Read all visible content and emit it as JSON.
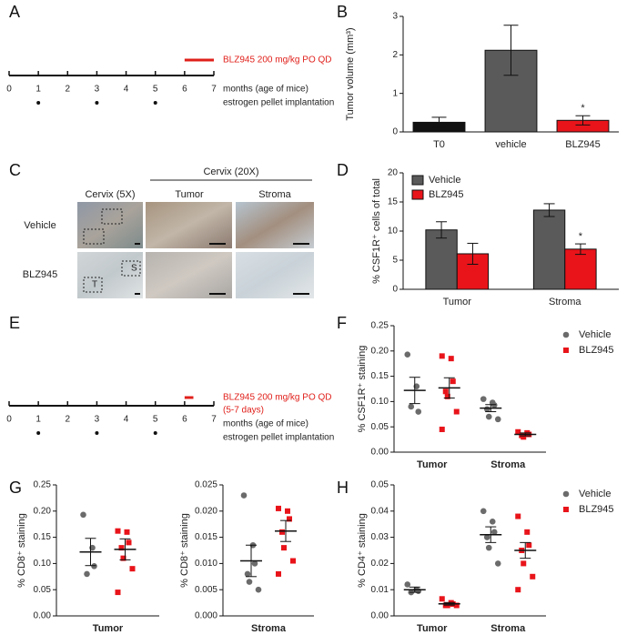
{
  "panels": [
    "A",
    "B",
    "C",
    "D",
    "E",
    "F",
    "G",
    "H"
  ],
  "timelines": [
    {
      "ticks": [
        0,
        1,
        2,
        3,
        4,
        5,
        6,
        7
      ],
      "pellets": [
        1,
        3,
        5
      ],
      "treatment": [
        6,
        7
      ],
      "treatment_label": "BLZ945 200 mg/kg PO QD",
      "axis_label": "months (age of mice)",
      "pellet_label": "estrogen pellet implantation"
    },
    {
      "ticks": [
        0,
        1,
        2,
        3,
        4,
        5,
        6,
        7
      ],
      "pellets": [
        1,
        3,
        5
      ],
      "treatment": [
        6.0,
        6.3
      ],
      "treatment_label": "BLZ945 200 mg/kg PO QD",
      "treatment_note": "(5-7 days)",
      "axis_label": "months (age of mice)",
      "pellet_label": "estrogen pellet implantation"
    }
  ],
  "micrographs": {
    "header_low": "Cervix (5X)",
    "header_high": "Cervix (20X)",
    "columns": [
      "Tumor",
      "Stroma"
    ],
    "rows": [
      "Vehicle",
      "BLZ945"
    ],
    "insets": [
      "S",
      "T"
    ]
  },
  "chart_data": [
    {
      "type": "bar",
      "ylabel": "Tumor volume (mm³)",
      "categories": [
        "T0",
        "vehicle",
        "BLZ945"
      ],
      "values": [
        0.25,
        2.12,
        0.3
      ],
      "errors": [
        0.13,
        0.65,
        0.12
      ],
      "colors": [
        "#111111",
        "#5a5a5a",
        "#e8141a"
      ],
      "ylim": [
        0,
        3
      ],
      "yticks": [
        0,
        1,
        2,
        3
      ],
      "annotations": [
        {
          "label": "*",
          "category": "BLZ945"
        }
      ]
    },
    {
      "type": "grouped-bar",
      "ylabel": "% CSF1R⁺ cells of total",
      "categories": [
        "Tumor",
        "Stroma"
      ],
      "series": [
        {
          "name": "Vehicle",
          "color": "#5a5a5a",
          "values": [
            10.2,
            13.6
          ],
          "errors": [
            1.4,
            1.1
          ]
        },
        {
          "name": "BLZ945",
          "color": "#e8141a",
          "values": [
            6.1,
            6.9
          ],
          "errors": [
            1.8,
            0.9
          ]
        }
      ],
      "ylim": [
        0,
        20
      ],
      "yticks": [
        0,
        5,
        10,
        15,
        20
      ],
      "legend": "upper left",
      "annotations": [
        {
          "label": "*",
          "category": "Stroma",
          "series": "BLZ945"
        }
      ]
    },
    {
      "type": "strip",
      "ylabel": "% CSF1R⁺ staining",
      "categories": [
        "Tumor",
        "Stroma"
      ],
      "legend": "right",
      "series": [
        {
          "name": "Vehicle",
          "color": "#6b6b6b",
          "marker": "circle",
          "points": [
            [
              0.193,
              0.13,
              0.08,
              0.09
            ],
            [
              0.105,
              0.098,
              0.093,
              0.085,
              0.07,
              0.065
            ]
          ],
          "mean": [
            0.122,
            0.087
          ],
          "sem": [
            0.026,
            0.007
          ]
        },
        {
          "name": "BLZ945",
          "color": "#e8141a",
          "marker": "square",
          "points": [
            [
              0.19,
              0.185,
              0.14,
              0.12,
              0.11,
              0.08,
              0.045
            ],
            [
              0.04,
              0.038,
              0.035,
              0.033,
              0.03
            ]
          ],
          "mean": [
            0.127,
            0.035
          ],
          "sem": [
            0.02,
            0.003
          ]
        }
      ],
      "ylim": [
        0,
        0.25
      ],
      "yticks": [
        {
          "value": 0,
          "label": "0.00"
        },
        0.05,
        {
          "value": 0.1,
          "label": "0.10"
        },
        0.15,
        {
          "value": 0.2,
          "label": "0.20"
        },
        0.25
      ]
    },
    {
      "type": "strip",
      "ylabel": "% CD8⁺ staining",
      "categories": [
        "Tumor"
      ],
      "series": [
        {
          "color": "#6b6b6b",
          "marker": "circle",
          "points": [
            [
              0.193,
              0.13,
              0.095,
              0.08
            ]
          ],
          "mean": [
            0.122
          ],
          "sem": [
            0.026
          ]
        },
        {
          "color": "#e8141a",
          "marker": "square",
          "points": [
            [
              0.162,
              0.16,
              0.14,
              0.13,
              0.11,
              0.09,
              0.045
            ]
          ],
          "mean": [
            0.127
          ],
          "sem": [
            0.02
          ]
        }
      ],
      "ylim": [
        0,
        0.25
      ],
      "yticks": [
        {
          "value": 0,
          "label": "0.00"
        },
        0.05,
        {
          "value": 0.1,
          "label": "0.10"
        },
        0.15,
        {
          "value": 0.2,
          "label": "0.20"
        },
        0.25
      ]
    },
    {
      "type": "strip",
      "ylabel": "% CD8⁺ staining",
      "categories": [
        "Stroma"
      ],
      "series": [
        {
          "color": "#6b6b6b",
          "marker": "circle",
          "points": [
            [
              0.023,
              0.0135,
              0.01,
              0.008,
              0.0065,
              0.005
            ]
          ],
          "mean": [
            0.0105
          ],
          "sem": [
            0.003
          ]
        },
        {
          "color": "#e8141a",
          "marker": "square",
          "points": [
            [
              0.0205,
              0.02,
              0.0185,
              0.016,
              0.013,
              0.0105,
              0.008
            ]
          ],
          "mean": [
            0.0162
          ],
          "sem": [
            0.002
          ]
        }
      ],
      "ylim": [
        0,
        0.025
      ],
      "yticks": [
        {
          "value": 0,
          "label": "0.000"
        },
        0.005,
        {
          "value": 0.01,
          "label": "0.010"
        },
        0.015,
        {
          "value": 0.02,
          "label": "0.020"
        },
        0.025
      ]
    },
    {
      "type": "strip",
      "ylabel": "% CD4⁺ staining",
      "categories": [
        "Tumor",
        "Stroma"
      ],
      "legend": "right",
      "series": [
        {
          "name": "Vehicle",
          "color": "#6b6b6b",
          "marker": "circle",
          "points": [
            [
              0.012,
              0.01,
              0.0095,
              0.009
            ],
            [
              0.04,
              0.036,
              0.032,
              0.03,
              0.026,
              0.02
            ]
          ],
          "mean": [
            0.01,
            0.031
          ],
          "sem": [
            0.001,
            0.003
          ]
        },
        {
          "name": "BLZ945",
          "color": "#e8141a",
          "marker": "square",
          "points": [
            [
              0.0065,
              0.005,
              0.0045,
              0.004,
              0.004,
              0.004
            ],
            [
              0.038,
              0.032,
              0.027,
              0.025,
              0.02,
              0.015,
              0.01
            ]
          ],
          "mean": [
            0.0046,
            0.025
          ],
          "sem": [
            0.0005,
            0.003
          ]
        }
      ],
      "ylim": [
        0,
        0.05
      ],
      "yticks": [
        {
          "value": 0,
          "label": "0.00"
        },
        0.01,
        0.02,
        0.03,
        0.04,
        0.05
      ]
    }
  ]
}
